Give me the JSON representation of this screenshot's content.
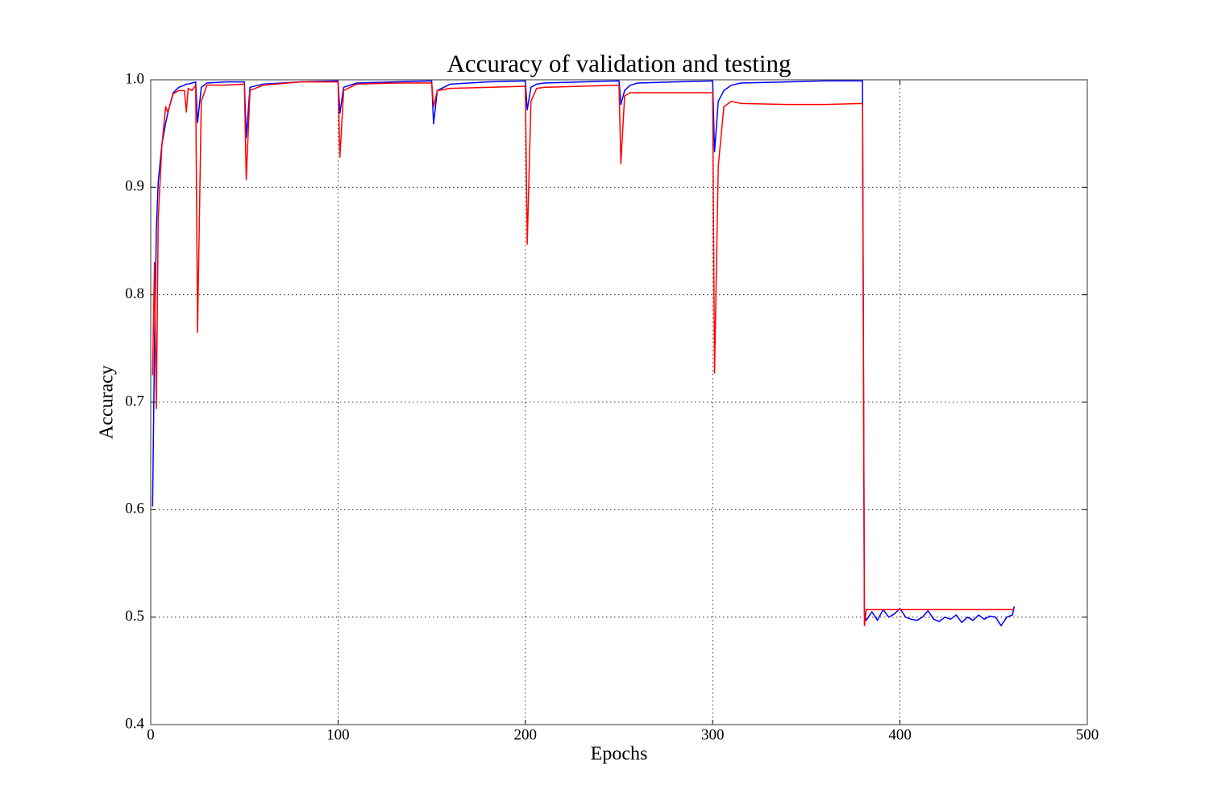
{
  "chart_data": {
    "type": "line",
    "title": "Accuracy of validation and testing",
    "xlabel": "Epochs",
    "ylabel": "Accuracy",
    "x": [
      1,
      2,
      3,
      4,
      6,
      8,
      9,
      10,
      12,
      15,
      18,
      19,
      20,
      22,
      24,
      25,
      27,
      30,
      40,
      50,
      51,
      53,
      60,
      80,
      100,
      101,
      103,
      110,
      130,
      150,
      151,
      153,
      160,
      180,
      200,
      201,
      203,
      206,
      210,
      230,
      250,
      251,
      253,
      256,
      260,
      280,
      300,
      301,
      303,
      306,
      310,
      315,
      340,
      360,
      380,
      381,
      382,
      385,
      388,
      391,
      394,
      397,
      400,
      403,
      406,
      409,
      412,
      415,
      418,
      421,
      424,
      427,
      430,
      433,
      436,
      439,
      442,
      445,
      448,
      451,
      454,
      457,
      460,
      461
    ],
    "series": [
      {
        "color": "#0000ff",
        "values": [
          0.603,
          0.75,
          0.86,
          0.905,
          0.94,
          0.96,
          0.968,
          0.975,
          0.988,
          0.993,
          0.995,
          0.996,
          0.996,
          0.997,
          0.998,
          0.96,
          0.993,
          0.997,
          0.998,
          0.998,
          0.946,
          0.993,
          0.996,
          0.998,
          0.999,
          0.969,
          0.993,
          0.997,
          0.998,
          0.999,
          0.959,
          0.99,
          0.996,
          0.998,
          0.999,
          0.972,
          0.993,
          0.996,
          0.997,
          0.998,
          0.999,
          0.977,
          0.99,
          0.995,
          0.997,
          0.998,
          0.999,
          0.933,
          0.98,
          0.99,
          0.995,
          0.997,
          0.998,
          0.999,
          0.999,
          0.505,
          0.497,
          0.505,
          0.497,
          0.507,
          0.5,
          0.503,
          0.508,
          0.5,
          0.498,
          0.497,
          0.5,
          0.506,
          0.498,
          0.496,
          0.5,
          0.498,
          0.502,
          0.495,
          0.5,
          0.497,
          0.502,
          0.498,
          0.501,
          0.5,
          0.492,
          0.5,
          0.502,
          0.51
        ]
      },
      {
        "color": "#ff0000",
        "values": [
          0.725,
          0.83,
          0.694,
          0.87,
          0.94,
          0.975,
          0.97,
          0.975,
          0.987,
          0.99,
          0.99,
          0.97,
          0.992,
          0.99,
          0.995,
          0.765,
          0.98,
          0.995,
          0.995,
          0.996,
          0.907,
          0.99,
          0.995,
          0.998,
          0.998,
          0.928,
          0.99,
          0.996,
          0.997,
          0.997,
          0.975,
          0.99,
          0.992,
          0.993,
          0.994,
          0.847,
          0.98,
          0.992,
          0.993,
          0.994,
          0.995,
          0.922,
          0.985,
          0.988,
          0.988,
          0.988,
          0.988,
          0.727,
          0.92,
          0.975,
          0.98,
          0.978,
          0.977,
          0.977,
          0.978,
          0.492,
          0.507,
          0.507,
          0.507,
          0.507,
          0.507,
          0.507,
          0.507,
          0.507,
          0.507,
          0.507,
          0.507,
          0.507,
          0.507,
          0.507,
          0.507,
          0.507,
          0.507,
          0.507,
          0.507,
          0.507,
          0.507,
          0.507,
          0.507,
          0.507,
          0.507,
          0.507,
          0.507,
          0.507
        ]
      }
    ],
    "xlim": [
      0,
      500
    ],
    "xticks": [
      0,
      100,
      200,
      300,
      400,
      500
    ],
    "ylim": [
      0.4,
      1.0
    ],
    "yticks": [
      0.4,
      0.5,
      0.6,
      0.7,
      0.8,
      0.9,
      {
        "value": 1.0,
        "label": "1.0"
      }
    ],
    "grid": true
  }
}
